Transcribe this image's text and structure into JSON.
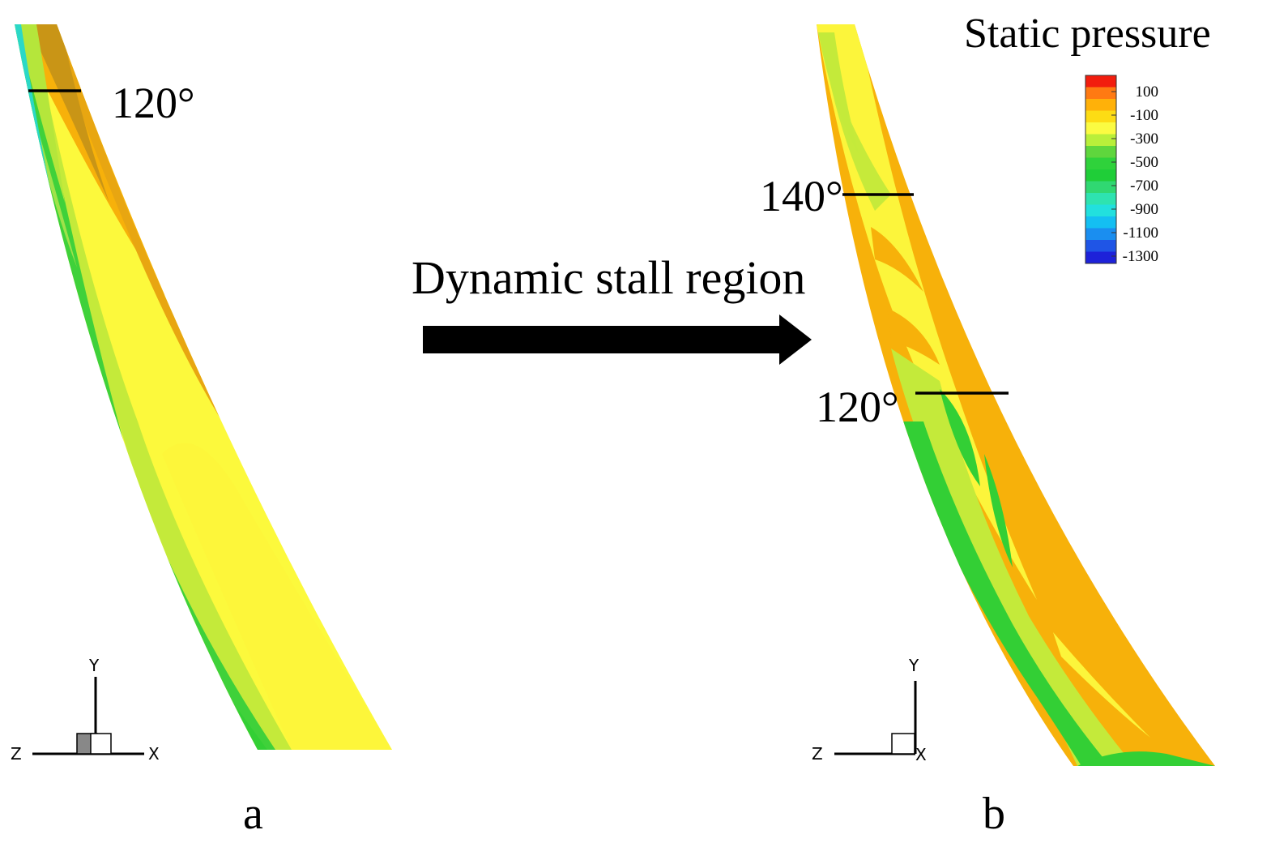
{
  "colorbar": {
    "title": "Static pressure",
    "levels": [
      "100",
      "-100",
      "-300",
      "-500",
      "-700",
      "-900",
      "-1100",
      "-1300"
    ],
    "colors": [
      "#f21d0e",
      "#ff7a12",
      "#ffb109",
      "#fddc14",
      "#fbfb42",
      "#b9ef3a",
      "#5fd63d",
      "#2fd23b",
      "#1fce38",
      "#30d872",
      "#2ee3b0",
      "#22e0de",
      "#14bff2",
      "#1a8ef0",
      "#1f55e6",
      "#1d22d9"
    ]
  },
  "arrow_label": "Dynamic stall region",
  "panel_a": {
    "label": "a",
    "angle_label": "120°",
    "axes": {
      "y": "Y",
      "z": "Z",
      "x": "X"
    }
  },
  "panel_b": {
    "label": "b",
    "angle_label_top": "140°",
    "angle_label_bottom": "120°",
    "axes": {
      "y": "Y",
      "z": "Z",
      "x": "X"
    }
  },
  "palette": {
    "orange": "#f7b10a",
    "brown_orange": "#c99516",
    "yellow": "#ffff3b",
    "yellow_green": "#c4ea3a",
    "green": "#33cf35",
    "cyan": "#2bd8c7",
    "blue": "#1f66e6"
  }
}
